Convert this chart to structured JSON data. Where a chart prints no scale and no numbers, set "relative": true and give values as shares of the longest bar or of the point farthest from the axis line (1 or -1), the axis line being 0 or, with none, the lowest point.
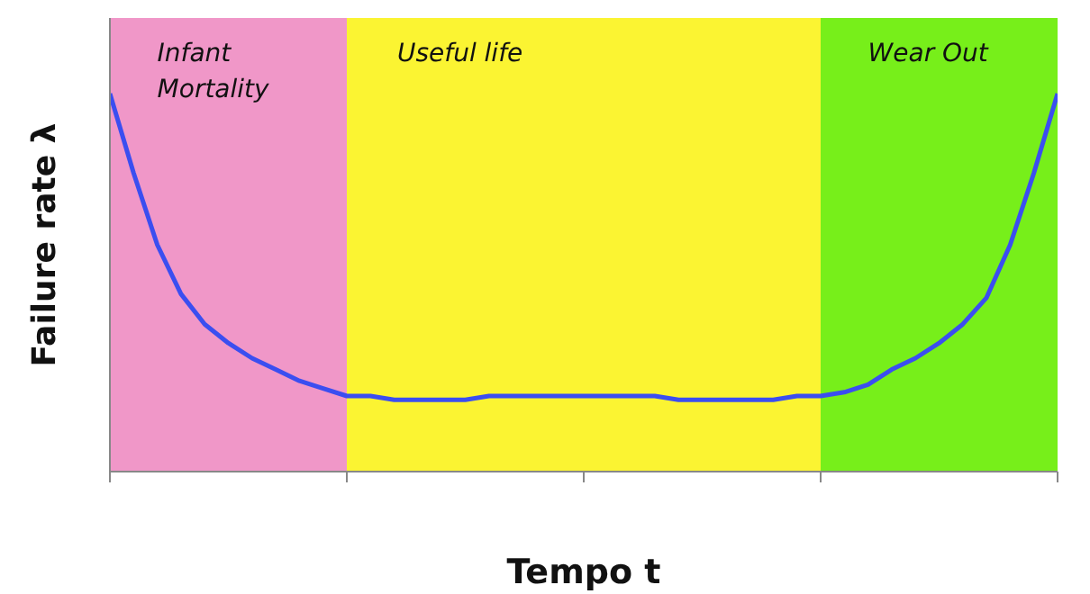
{
  "chart_data": {
    "type": "line",
    "relative": true,
    "xlabel": "Tempo t",
    "ylabel": "Failure rate λ",
    "categories": [
      null,
      null,
      null,
      null,
      null,
      null,
      null,
      null,
      null,
      null,
      null,
      null,
      null,
      null,
      null,
      null,
      null,
      null,
      null,
      null,
      null,
      null,
      null,
      null,
      null,
      null,
      null,
      null,
      null,
      null,
      null,
      null,
      null,
      null,
      null,
      null,
      null,
      null,
      null,
      null,
      null
    ],
    "series": [
      {
        "color": "#3b4ef0",
        "values": [
          1,
          0.79,
          0.6,
          0.47,
          0.39,
          0.34,
          0.3,
          0.27,
          0.24,
          0.22,
          0.2,
          0.2,
          0.19,
          0.19,
          0.19,
          0.19,
          0.2,
          0.2,
          0.2,
          0.2,
          0.2,
          0.2,
          0.2,
          0.2,
          0.19,
          0.19,
          0.19,
          0.19,
          0.19,
          0.2,
          0.2,
          0.21,
          0.23,
          0.27,
          0.3,
          0.34,
          0.39,
          0.46,
          0.6,
          0.79,
          1
        ]
      }
    ],
    "annotations": [
      "Infant Mortality",
      "Useful life",
      "Wear Out"
    ],
    "marker": "none",
    "line_style": "solid"
  }
}
